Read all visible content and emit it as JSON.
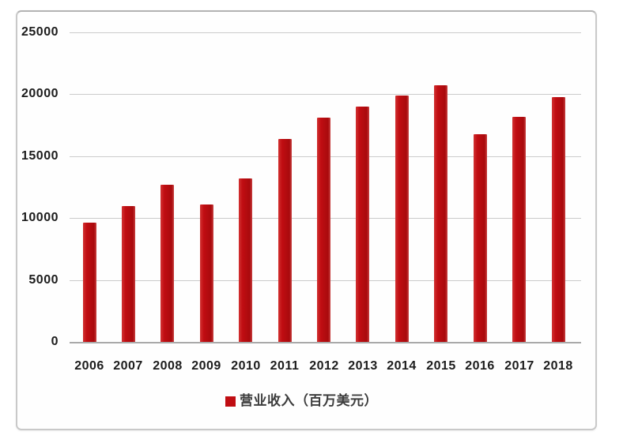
{
  "chart_data": {
    "type": "bar",
    "title": "",
    "categories": [
      "2006",
      "2007",
      "2008",
      "2009",
      "2010",
      "2011",
      "2012",
      "2013",
      "2014",
      "2015",
      "2016",
      "2017",
      "2018"
    ],
    "series": [
      {
        "name": "营业收入（百万美元）",
        "values": [
          9600,
          11000,
          12700,
          11100,
          13200,
          16400,
          18100,
          19000,
          19900,
          20700,
          16800,
          18200,
          19800
        ],
        "color": "#c00d12"
      }
    ],
    "xlabel": "",
    "ylabel": "",
    "ylim": [
      0,
      25000
    ],
    "yticks": [
      0,
      5000,
      10000,
      15000,
      20000,
      25000
    ],
    "grid": true,
    "legend_position": "bottom",
    "legend_marker": "square",
    "colors": {
      "bar": "#c00d12",
      "gridline": "#cbcbcb",
      "axis_line": "#a9a9a9",
      "tick_text": "#1c1c1c",
      "legend_text": "#3c3c3c",
      "frame_border": "#c9c9c9",
      "background": "#ffffff"
    }
  }
}
